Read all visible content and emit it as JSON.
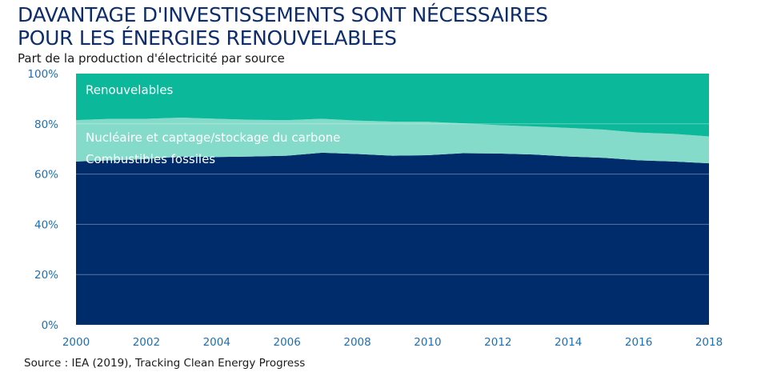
{
  "header": {
    "title_line1": "DAVANTAGE D'INVESTISSEMENTS SONT NÉCESSAIRES",
    "title_line2": "POUR LES ÉNERGIES RENOUVELABLES",
    "subtitle": "Part de la production d'électricité par source"
  },
  "footer": {
    "source": "Source : IEA (2019), Tracking Clean Energy Progress"
  },
  "chart_data": {
    "type": "area",
    "stacked": true,
    "title": "",
    "xlabel": "",
    "ylabel": "",
    "x": [
      2000,
      2001,
      2002,
      2003,
      2004,
      2005,
      2006,
      2007,
      2008,
      2009,
      2010,
      2011,
      2012,
      2013,
      2014,
      2015,
      2016,
      2017,
      2018
    ],
    "xticks": [
      "2000",
      "2002",
      "2004",
      "2006",
      "2008",
      "2010",
      "2012",
      "2014",
      "2016",
      "2018"
    ],
    "xlim": [
      2000,
      2018
    ],
    "ylim": [
      0,
      100
    ],
    "yticks": [
      "0%",
      "20%",
      "40%",
      "60%",
      "80%",
      "100%"
    ],
    "grid": true,
    "series": [
      {
        "name": "Combustibles fossiles",
        "color": "#002c6b",
        "values": [
          65,
          65.5,
          66,
          67,
          66.8,
          67,
          67.3,
          68.5,
          68,
          67.3,
          67.5,
          68.3,
          68.2,
          67.8,
          67,
          66.5,
          65.5,
          65,
          64.3
        ]
      },
      {
        "name": "Nucléaire et captage/stockage du carbone",
        "color": "#84dbc9",
        "values": [
          16.5,
          16.5,
          16,
          15.5,
          15.2,
          14.6,
          14.2,
          13.5,
          13.3,
          13.6,
          13.3,
          11.9,
          11.3,
          11.2,
          11.4,
          11.2,
          11,
          11,
          10.7
        ]
      },
      {
        "name": "Renouvelables",
        "color": "#0bb99a",
        "values": [
          18.5,
          18,
          18,
          17.5,
          18,
          18.4,
          18.5,
          18,
          18.7,
          19.1,
          19.2,
          19.8,
          20.5,
          21,
          21.6,
          22.3,
          23.5,
          24,
          25
        ]
      }
    ]
  }
}
